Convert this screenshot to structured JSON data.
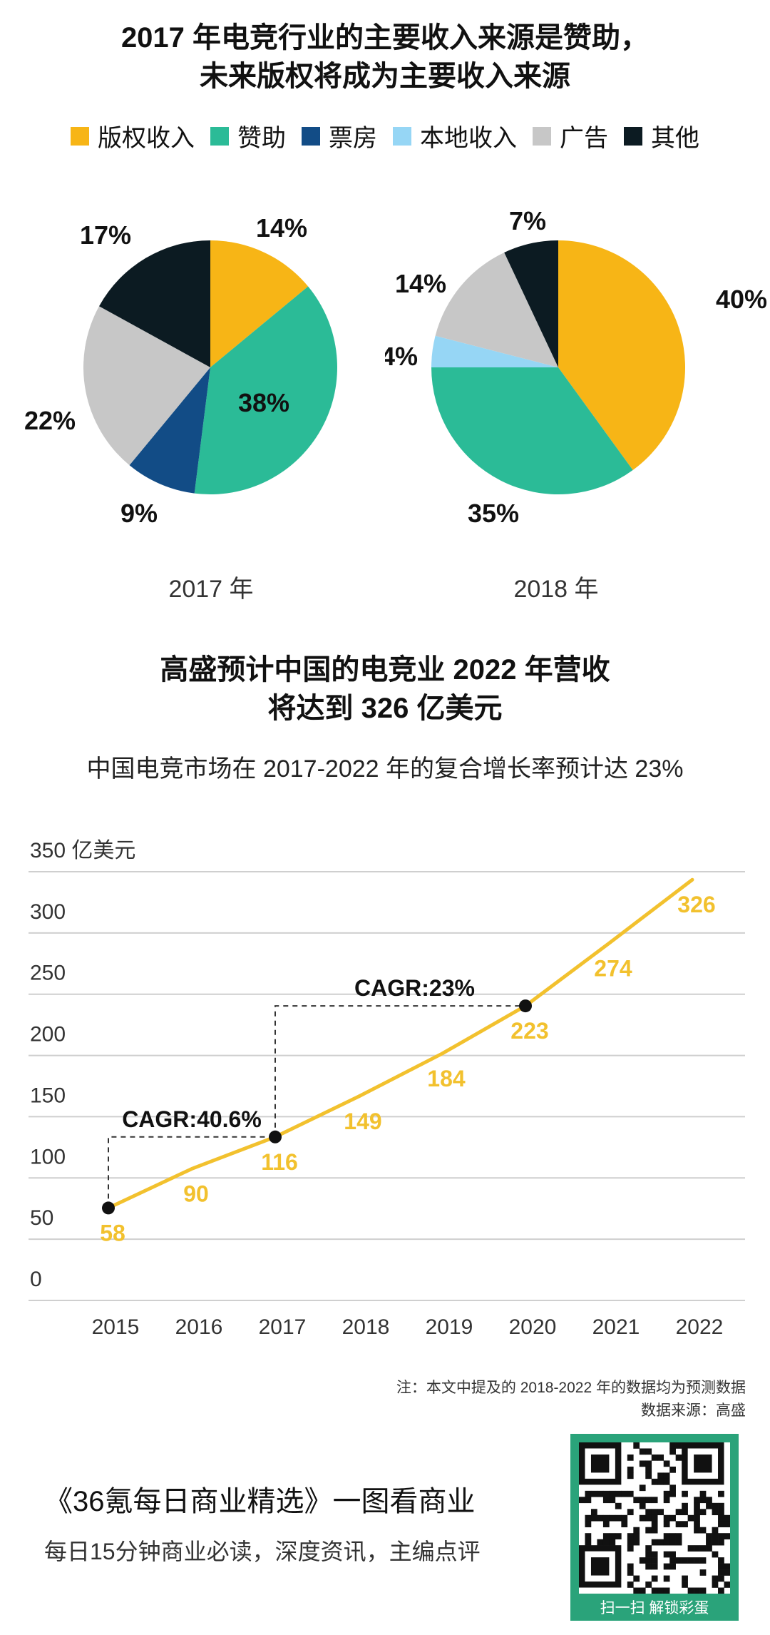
{
  "header": {
    "title_line1": "2017 年电竞行业的主要收入来源是赞助，",
    "title_line2": "未来版权将成为主要收入来源"
  },
  "legend": [
    {
      "label": "版权收入",
      "color": "#F7B516"
    },
    {
      "label": "赞助",
      "color": "#2BBB97"
    },
    {
      "label": "票房",
      "color": "#124C86"
    },
    {
      "label": "本地收入",
      "color": "#96D6F5"
    },
    {
      "label": "广告",
      "color": "#C7C7C7"
    },
    {
      "label": "其他",
      "color": "#0C1B22"
    }
  ],
  "chart_data": [
    {
      "type": "pie",
      "title": "2017 年",
      "slices": [
        {
          "label": "版权收入",
          "value": 14,
          "text": "14%"
        },
        {
          "label": "赞助",
          "value": 38,
          "text": "38%"
        },
        {
          "label": "票房",
          "value": 9,
          "text": "9%"
        },
        {
          "label": "本地收入",
          "value": 0,
          "text": ""
        },
        {
          "label": "广告",
          "value": 22,
          "text": "22%"
        },
        {
          "label": "其他",
          "value": 17,
          "text": "17%"
        }
      ]
    },
    {
      "type": "pie",
      "title": "2018 年",
      "slices": [
        {
          "label": "版权收入",
          "value": 40,
          "text": "40%"
        },
        {
          "label": "赞助",
          "value": 35,
          "text": "35%"
        },
        {
          "label": "票房",
          "value": 0,
          "text": ""
        },
        {
          "label": "本地收入",
          "value": 4,
          "text": "4%"
        },
        {
          "label": "广告",
          "value": 14,
          "text": "14%"
        },
        {
          "label": "其他",
          "value": 7,
          "text": "7%"
        }
      ]
    },
    {
      "type": "line",
      "title": "高盛预计中国的电竞业 2022 年营收将达到 326 亿美元",
      "subtitle": "中国电竞市场在 2017-2022 年的复合增长率预计达 23%",
      "ylabel": "亿美元",
      "categories": [
        "2015",
        "2016",
        "2017",
        "2018",
        "2019",
        "2020",
        "2021",
        "2022"
      ],
      "values": [
        58,
        90,
        116,
        149,
        184,
        223,
        274,
        326
      ],
      "value_labels": [
        "58",
        "90",
        "116",
        "149",
        "184",
        "223",
        "274",
        "326"
      ],
      "ylim": [
        0,
        350
      ],
      "yticks": [
        "0",
        "50",
        "100",
        "150",
        "200",
        "250",
        "300",
        "350 亿美元"
      ],
      "line_color": "#F2C12E",
      "annotations": [
        {
          "text": "CAGR:40.6%",
          "from": "2015",
          "to": "2017"
        },
        {
          "text": "CAGR:23%",
          "from": "2017",
          "to": "2020"
        }
      ]
    }
  ],
  "line_section": {
    "title_line1": "高盛预计中国的电竞业 2022 年营收",
    "title_line2": "将达到 326 亿美元"
  },
  "notes": {
    "note": "注：本文中提及的 2018-2022 年的数据均为预测数据",
    "source": "数据来源：高盛"
  },
  "footer": {
    "title": "《36氪每日商业精选》一图看商业",
    "subtitle": "每日15分钟商业必读，深度资讯，主编点评",
    "qr_caption": "扫一扫 解锁彩蛋"
  }
}
